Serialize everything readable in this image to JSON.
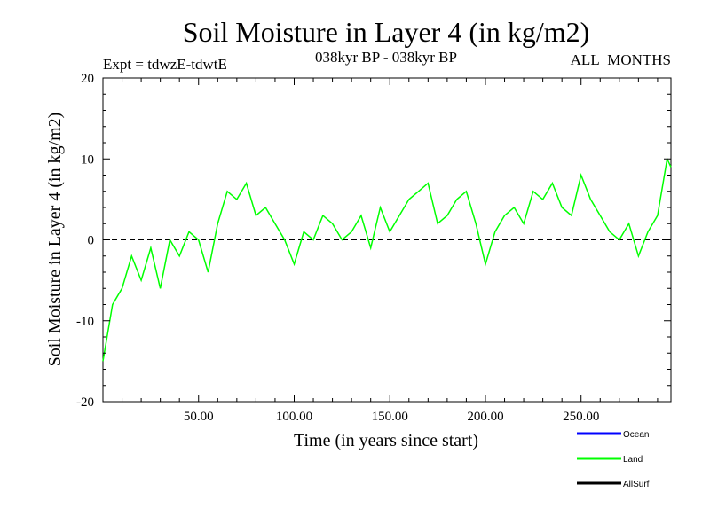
{
  "chart_data": {
    "type": "line",
    "title": "Soil Moisture in Layer 4 (in kg/m2)",
    "subtitle": "038kyr BP - 038kyr BP",
    "left_label": "Expt = tdwzE-tdwtE",
    "right_label": "ALL_MONTHS",
    "xlabel": "Time (in years since start)",
    "ylabel": "Soil Moisture in Layer 4 (in kg/m2)",
    "xlim": [
      0,
      297
    ],
    "ylim": [
      -20,
      20
    ],
    "x_ticks": [
      50,
      100,
      150,
      200,
      250
    ],
    "x_tick_labels": [
      "50.00",
      "100.00",
      "150.00",
      "200.00",
      "250.00"
    ],
    "y_ticks": [
      -20,
      -10,
      0,
      10,
      20
    ],
    "y_tick_labels": [
      "-20",
      "-10",
      "0",
      "10",
      "20"
    ],
    "reference_line": 0,
    "grid": false,
    "legend_position": "bottom-right, below plot",
    "series": [
      {
        "name": "Ocean",
        "color": "#0000ff",
        "x": [],
        "values": []
      },
      {
        "name": "Land",
        "color": "#00ff00",
        "x": [
          0,
          5,
          10,
          15,
          20,
          25,
          30,
          35,
          40,
          45,
          50,
          55,
          60,
          65,
          70,
          75,
          80,
          85,
          90,
          95,
          100,
          105,
          110,
          115,
          120,
          125,
          130,
          135,
          140,
          145,
          150,
          155,
          160,
          165,
          170,
          175,
          180,
          185,
          190,
          195,
          200,
          205,
          210,
          215,
          220,
          225,
          230,
          235,
          240,
          245,
          250,
          255,
          260,
          265,
          270,
          275,
          280,
          285,
          290,
          295,
          297
        ],
        "values": [
          -15,
          -8,
          -6,
          -2,
          -5,
          -1,
          -6,
          0,
          -2,
          1,
          0,
          -4,
          2,
          6,
          5,
          7,
          3,
          4,
          2,
          0,
          -3,
          1,
          0,
          3,
          2,
          0,
          1,
          3,
          -1,
          4,
          1,
          3,
          5,
          6,
          7,
          2,
          3,
          5,
          6,
          2,
          -3,
          1,
          3,
          4,
          2,
          6,
          5,
          7,
          4,
          3,
          8,
          5,
          3,
          1,
          0,
          2,
          -2,
          1,
          3,
          10,
          9
        ]
      },
      {
        "name": "AllSurf",
        "color": "#000000",
        "x": [],
        "values": []
      }
    ]
  }
}
